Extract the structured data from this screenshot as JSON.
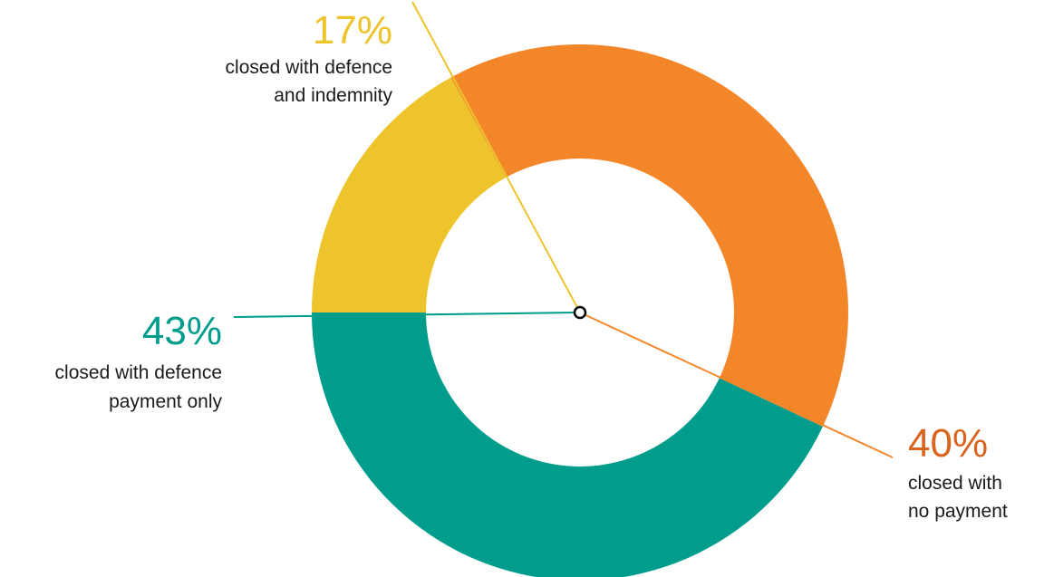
{
  "chart_data": {
    "type": "pie",
    "style": "donut",
    "title": "",
    "slices": [
      {
        "value": 40,
        "percent_label": "40%",
        "label_lines": [
          "closed with",
          "no payment"
        ],
        "color": "#F4862A",
        "label_color": "#D9641E"
      },
      {
        "value": 43,
        "percent_label": "43%",
        "label_lines": [
          "closed with defence",
          "payment only"
        ],
        "color": "#009C8C",
        "label_color": "#009C8C"
      },
      {
        "value": 17,
        "percent_label": "17%",
        "label_lines": [
          "closed with defence",
          "and indemnity"
        ],
        "color": "#EDC42C",
        "label_color": "#EDC42C"
      }
    ],
    "legend": "none"
  }
}
